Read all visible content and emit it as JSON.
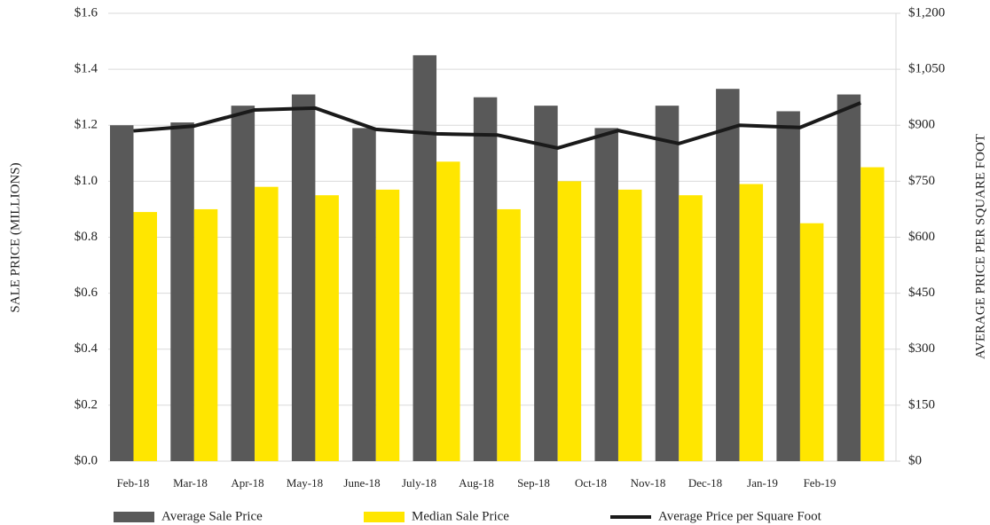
{
  "chart_data": {
    "type": "bar-line",
    "ylabel": "SALE PRICE (MILLIONS)",
    "y2label": "AVERAGE PRICE PER SQUARE FOOT",
    "categories": [
      "Feb-18",
      "Mar-18",
      "Apr-18",
      "May-18",
      "June-18",
      "July-18",
      "Aug-18",
      "Sep-18",
      "Oct-18",
      "Nov-18",
      "Dec-18",
      "Jan-19",
      "Feb-19"
    ],
    "series": [
      {
        "name": "Average Sale Price",
        "type": "bar",
        "color": "#595959",
        "values": [
          1.2,
          1.21,
          1.27,
          1.31,
          1.19,
          1.45,
          1.3,
          1.27,
          1.19,
          1.27,
          1.33,
          1.25,
          1.31
        ]
      },
      {
        "name": "Median Sale Price",
        "type": "bar",
        "color": "#ffe600",
        "values": [
          0.89,
          0.9,
          0.98,
          0.95,
          0.97,
          1.07,
          0.9,
          1.0,
          0.97,
          0.95,
          0.99,
          0.85,
          1.05
        ]
      },
      {
        "name": "Average Price per Square Foot",
        "type": "line",
        "axis": "y2",
        "color": "#1a1a1a",
        "values": [
          885,
          898,
          941,
          946,
          889,
          877,
          874,
          839,
          886,
          851,
          900,
          894,
          960
        ]
      }
    ],
    "ylim": [
      0,
      1.6
    ],
    "yticks": [
      {
        "value": 0,
        "label": "$0.0"
      },
      {
        "value": 0.2,
        "label": "$0.2"
      },
      {
        "value": 0.4,
        "label": "$0.4"
      },
      {
        "value": 0.6,
        "label": "$0.6"
      },
      {
        "value": 0.8,
        "label": "$0.8"
      },
      {
        "value": 1.0,
        "label": "$1.0"
      },
      {
        "value": 1.2,
        "label": "$1.2"
      },
      {
        "value": 1.4,
        "label": "$1.4"
      },
      {
        "value": 1.6,
        "label": "$1.6"
      }
    ],
    "y2lim": [
      0,
      1200
    ],
    "y2ticks": [
      {
        "value": 0,
        "label": "$0"
      },
      {
        "value": 150,
        "label": "$150"
      },
      {
        "value": 300,
        "label": "$300"
      },
      {
        "value": 450,
        "label": "$450"
      },
      {
        "value": 600,
        "label": "$600"
      },
      {
        "value": 750,
        "label": "$750"
      },
      {
        "value": 900,
        "label": "$900"
      },
      {
        "value": 1050,
        "label": "$1,050"
      },
      {
        "value": 1200,
        "label": "$1,200"
      }
    ],
    "grid": true
  }
}
